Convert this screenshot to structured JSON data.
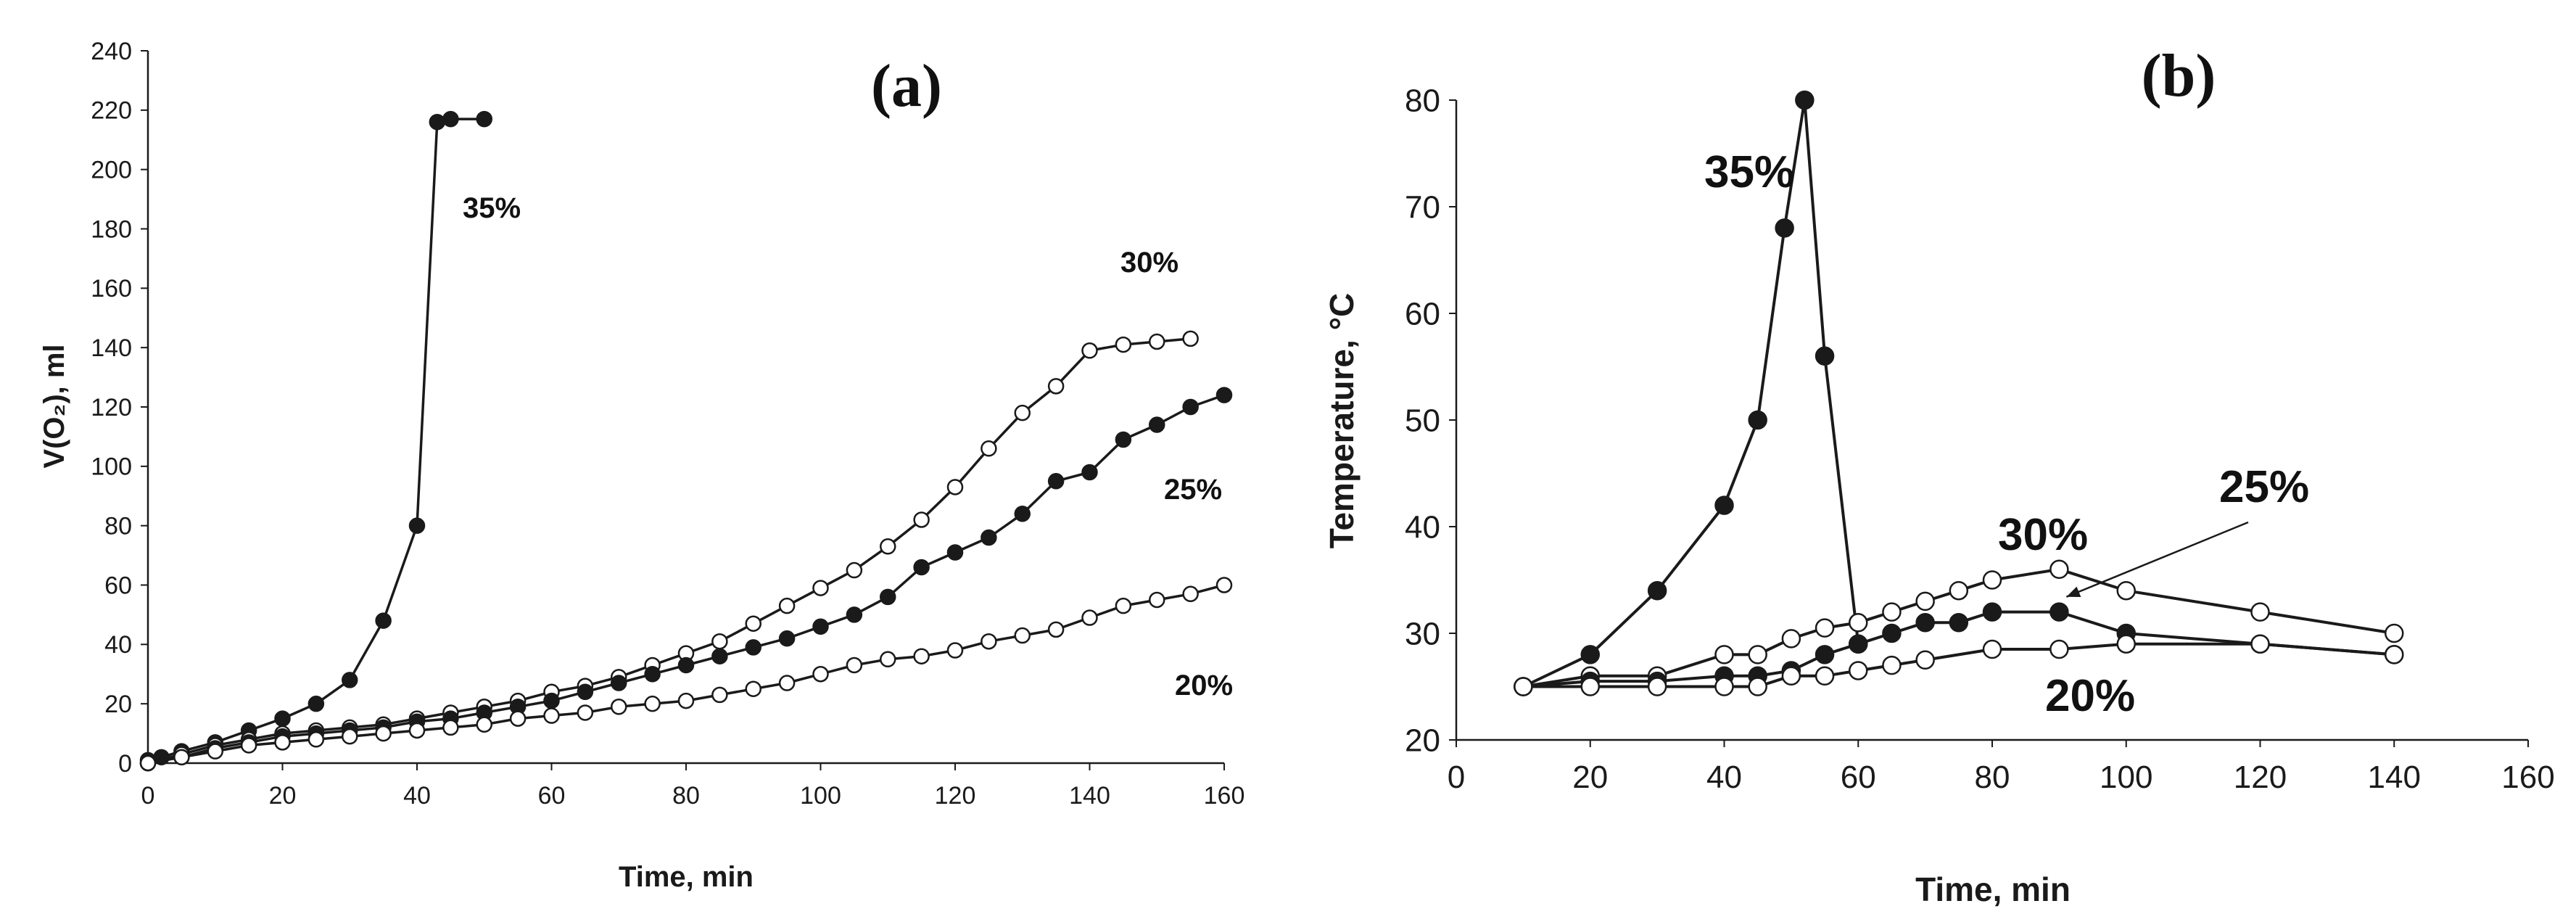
{
  "colors": {
    "line": "#1a1a1a",
    "filled_marker": "#1a1a1a",
    "open_marker_fill": "#ffffff",
    "axis": "#1a1a1a"
  },
  "chart_data": [
    {
      "type": "line",
      "panel_label": "(a)",
      "title": "",
      "xlabel": "Time, min",
      "ylabel": "V(O₂), ml",
      "xlim": [
        0,
        160
      ],
      "ylim": [
        0,
        240
      ],
      "xticks": [
        0,
        20,
        40,
        60,
        80,
        100,
        120,
        140,
        160
      ],
      "yticks": [
        0,
        20,
        40,
        60,
        80,
        100,
        120,
        140,
        160,
        180,
        200,
        220,
        240
      ],
      "grid": false,
      "series": [
        {
          "name": "35%",
          "marker": "filled",
          "x": [
            0,
            2,
            5,
            10,
            15,
            20,
            25,
            30,
            35,
            40,
            43,
            45,
            50
          ],
          "y": [
            1,
            2,
            4,
            7,
            11,
            15,
            20,
            28,
            48,
            80,
            216,
            217,
            217
          ]
        },
        {
          "name": "30%",
          "marker": "open",
          "x": [
            0,
            5,
            10,
            15,
            20,
            25,
            30,
            35,
            40,
            45,
            50,
            55,
            60,
            65,
            70,
            75,
            80,
            85,
            90,
            95,
            100,
            105,
            110,
            115,
            120,
            125,
            130,
            135,
            140,
            145,
            150,
            155
          ],
          "y": [
            0,
            3,
            6,
            8,
            10,
            11,
            12,
            13,
            15,
            17,
            19,
            21,
            24,
            26,
            29,
            33,
            37,
            41,
            47,
            53,
            59,
            65,
            73,
            82,
            93,
            106,
            118,
            127,
            139,
            141,
            142,
            143
          ]
        },
        {
          "name": "25%",
          "marker": "filled",
          "x": [
            0,
            5,
            10,
            15,
            20,
            25,
            30,
            35,
            40,
            45,
            50,
            55,
            60,
            65,
            70,
            75,
            80,
            85,
            90,
            95,
            100,
            105,
            110,
            115,
            120,
            125,
            130,
            135,
            140,
            145,
            150,
            155,
            160
          ],
          "y": [
            0,
            2,
            5,
            7,
            9,
            10,
            11,
            12,
            14,
            15,
            17,
            19,
            21,
            24,
            27,
            30,
            33,
            36,
            39,
            42,
            46,
            50,
            56,
            66,
            71,
            76,
            84,
            95,
            98,
            109,
            114,
            120,
            124
          ]
        },
        {
          "name": "20%",
          "marker": "open",
          "x": [
            0,
            5,
            10,
            15,
            20,
            25,
            30,
            35,
            40,
            45,
            50,
            55,
            60,
            65,
            70,
            75,
            80,
            85,
            90,
            95,
            100,
            105,
            110,
            115,
            120,
            125,
            130,
            135,
            140,
            145,
            150,
            155,
            160
          ],
          "y": [
            0,
            2,
            4,
            6,
            7,
            8,
            9,
            10,
            11,
            12,
            13,
            15,
            16,
            17,
            19,
            20,
            21,
            23,
            25,
            27,
            30,
            33,
            35,
            36,
            38,
            41,
            43,
            45,
            49,
            53,
            55,
            57,
            60
          ]
        }
      ]
    },
    {
      "type": "line",
      "panel_label": "(b)",
      "title": "",
      "xlabel": "Time, min",
      "ylabel": "Temperature, °C",
      "xlim": [
        0,
        160
      ],
      "ylim": [
        20,
        80
      ],
      "xticks": [
        0,
        20,
        40,
        60,
        80,
        100,
        120,
        140,
        160
      ],
      "yticks": [
        20,
        30,
        40,
        50,
        60,
        70,
        80
      ],
      "grid": false,
      "series": [
        {
          "name": "35%",
          "marker": "filled",
          "x": [
            10,
            20,
            30,
            40,
            45,
            49,
            52,
            55,
            60
          ],
          "y": [
            25,
            28,
            34,
            42,
            50,
            68,
            80,
            56,
            29
          ]
        },
        {
          "name": "30%",
          "marker": "open",
          "x": [
            10,
            20,
            30,
            40,
            45,
            50,
            55,
            60,
            65,
            70,
            75,
            80,
            90,
            100,
            120,
            140
          ],
          "y": [
            25,
            26,
            26,
            28,
            28,
            29.5,
            30.5,
            31,
            32,
            33,
            34,
            35,
            36,
            34,
            32,
            30
          ]
        },
        {
          "name": "25%",
          "marker": "filled",
          "x": [
            10,
            20,
            30,
            40,
            45,
            50,
            55,
            60,
            65,
            70,
            75,
            80,
            90,
            100,
            120,
            140
          ],
          "y": [
            25,
            25.5,
            25.5,
            26,
            26,
            26.5,
            28,
            29,
            30,
            31,
            31,
            32,
            32,
            30,
            29,
            28
          ]
        },
        {
          "name": "20%",
          "marker": "open",
          "x": [
            10,
            20,
            30,
            40,
            45,
            50,
            55,
            60,
            65,
            70,
            80,
            90,
            100,
            120,
            140
          ],
          "y": [
            25,
            25,
            25,
            25,
            25,
            26,
            26,
            26.5,
            27,
            27.5,
            28.5,
            28.5,
            29,
            29,
            28
          ]
        }
      ]
    }
  ]
}
